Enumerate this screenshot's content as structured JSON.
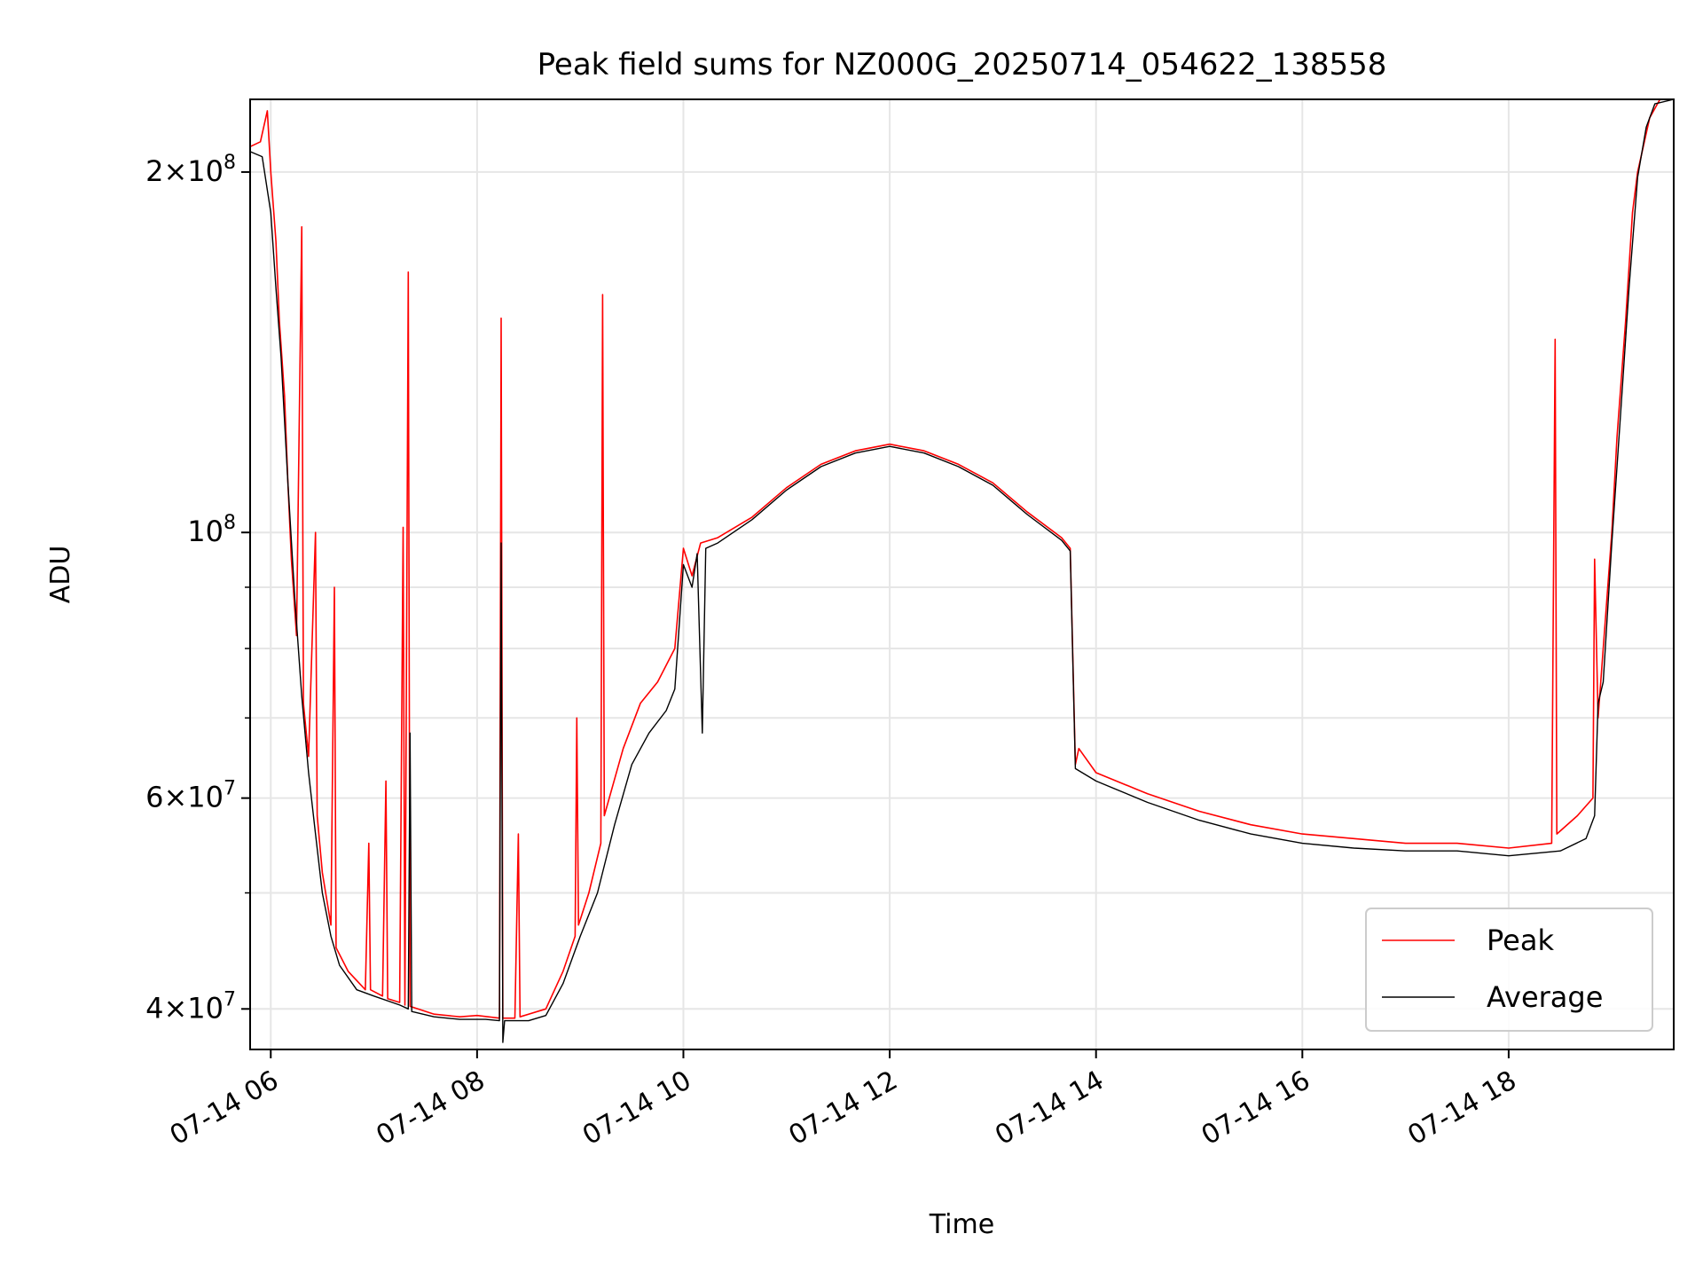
{
  "chart_data": {
    "type": "line",
    "title": "Peak field sums for NZ000G_20250714_054622_138558",
    "xlabel": "Time",
    "ylabel": "ADU",
    "x_type": "datetime",
    "y_scale": "log",
    "xlim": [
      "2025-07-14 05:48",
      "2025-07-14 19:36"
    ],
    "ylim": [
      37000000,
      230000000
    ],
    "x_ticks": [
      {
        "value": "2025-07-14 06:00",
        "label": "07-14 06"
      },
      {
        "value": "2025-07-14 08:00",
        "label": "07-14 08"
      },
      {
        "value": "2025-07-14 10:00",
        "label": "07-14 10"
      },
      {
        "value": "2025-07-14 12:00",
        "label": "07-14 12"
      },
      {
        "value": "2025-07-14 14:00",
        "label": "07-14 14"
      },
      {
        "value": "2025-07-14 16:00",
        "label": "07-14 16"
      },
      {
        "value": "2025-07-14 18:00",
        "label": "07-14 18"
      }
    ],
    "y_ticks": [
      {
        "value": 40000000,
        "mantissa": "4",
        "exponent": "7"
      },
      {
        "value": 60000000,
        "mantissa": "6",
        "exponent": "7"
      },
      {
        "value": 100000000,
        "mantissa": "",
        "exponent": "8"
      },
      {
        "value": 200000000,
        "mantissa": "2",
        "exponent": "8"
      }
    ],
    "y_minor_ticks": [
      50000000,
      70000000,
      80000000,
      90000000
    ],
    "grid": true,
    "legend_position": "lower-right",
    "series": [
      {
        "name": "Peak",
        "color": "#ff0000",
        "points": [
          [
            "2025-07-14 05:48",
            210000000
          ],
          [
            "2025-07-14 05:54",
            212000000
          ],
          [
            "2025-07-14 05:58",
            225000000
          ],
          [
            "2025-07-14 06:00",
            200000000
          ],
          [
            "2025-07-14 06:03",
            175000000
          ],
          [
            "2025-07-14 06:05",
            150000000
          ],
          [
            "2025-07-14 06:08",
            130000000
          ],
          [
            "2025-07-14 06:10",
            110000000
          ],
          [
            "2025-07-14 06:12",
            95000000
          ],
          [
            "2025-07-14 06:15",
            82000000
          ],
          [
            "2025-07-14 06:18",
            180000000
          ],
          [
            "2025-07-14 06:19",
            72000000
          ],
          [
            "2025-07-14 06:22",
            65000000
          ],
          [
            "2025-07-14 06:26",
            100000000
          ],
          [
            "2025-07-14 06:27",
            58000000
          ],
          [
            "2025-07-14 06:30",
            52000000
          ],
          [
            "2025-07-14 06:35",
            47000000
          ],
          [
            "2025-07-14 06:37",
            90000000
          ],
          [
            "2025-07-14 06:38",
            45000000
          ],
          [
            "2025-07-14 06:45",
            43000000
          ],
          [
            "2025-07-14 06:55",
            41500000
          ],
          [
            "2025-07-14 06:57",
            55000000
          ],
          [
            "2025-07-14 06:58",
            41500000
          ],
          [
            "2025-07-14 07:05",
            41000000
          ],
          [
            "2025-07-14 07:07",
            62000000
          ],
          [
            "2025-07-14 07:08",
            40800000
          ],
          [
            "2025-07-14 07:15",
            40500000
          ],
          [
            "2025-07-14 07:17",
            101000000
          ],
          [
            "2025-07-14 07:18",
            40300000
          ],
          [
            "2025-07-14 07:20",
            165000000
          ],
          [
            "2025-07-14 07:21",
            40200000
          ],
          [
            "2025-07-14 07:35",
            39600000
          ],
          [
            "2025-07-14 07:50",
            39400000
          ],
          [
            "2025-07-14 08:00",
            39500000
          ],
          [
            "2025-07-14 08:13",
            39300000
          ],
          [
            "2025-07-14 08:14",
            151000000
          ],
          [
            "2025-07-14 08:15",
            39300000
          ],
          [
            "2025-07-14 08:22",
            39300000
          ],
          [
            "2025-07-14 08:24",
            56000000
          ],
          [
            "2025-07-14 08:25",
            39400000
          ],
          [
            "2025-07-14 08:40",
            40000000
          ],
          [
            "2025-07-14 08:50",
            43000000
          ],
          [
            "2025-07-14 08:57",
            46000000
          ],
          [
            "2025-07-14 08:58",
            70000000
          ],
          [
            "2025-07-14 08:59",
            47000000
          ],
          [
            "2025-07-14 09:05",
            50000000
          ],
          [
            "2025-07-14 09:12",
            55000000
          ],
          [
            "2025-07-14 09:13",
            158000000
          ],
          [
            "2025-07-14 09:14",
            58000000
          ],
          [
            "2025-07-14 09:25",
            66000000
          ],
          [
            "2025-07-14 09:35",
            72000000
          ],
          [
            "2025-07-14 09:45",
            75000000
          ],
          [
            "2025-07-14 09:55",
            80000000
          ],
          [
            "2025-07-14 10:00",
            97000000
          ],
          [
            "2025-07-14 10:05",
            92000000
          ],
          [
            "2025-07-14 10:10",
            98000000
          ],
          [
            "2025-07-14 10:20",
            99000000
          ],
          [
            "2025-07-14 10:40",
            103000000
          ],
          [
            "2025-07-14 11:00",
            109000000
          ],
          [
            "2025-07-14 11:20",
            114000000
          ],
          [
            "2025-07-14 11:40",
            117000000
          ],
          [
            "2025-07-14 12:00",
            118500000
          ],
          [
            "2025-07-14 12:20",
            117000000
          ],
          [
            "2025-07-14 12:40",
            114000000
          ],
          [
            "2025-07-14 13:00",
            110000000
          ],
          [
            "2025-07-14 13:20",
            104000000
          ],
          [
            "2025-07-14 13:40",
            99000000
          ],
          [
            "2025-07-14 13:45",
            97000000
          ],
          [
            "2025-07-14 13:48",
            64000000
          ],
          [
            "2025-07-14 13:50",
            66000000
          ],
          [
            "2025-07-14 14:00",
            63000000
          ],
          [
            "2025-07-14 14:30",
            60500000
          ],
          [
            "2025-07-14 15:00",
            58500000
          ],
          [
            "2025-07-14 15:30",
            57000000
          ],
          [
            "2025-07-14 16:00",
            56000000
          ],
          [
            "2025-07-14 16:30",
            55500000
          ],
          [
            "2025-07-14 17:00",
            55000000
          ],
          [
            "2025-07-14 17:30",
            55000000
          ],
          [
            "2025-07-14 18:00",
            54500000
          ],
          [
            "2025-07-14 18:25",
            55000000
          ],
          [
            "2025-07-14 18:27",
            145000000
          ],
          [
            "2025-07-14 18:28",
            56000000
          ],
          [
            "2025-07-14 18:40",
            58000000
          ],
          [
            "2025-07-14 18:49",
            60000000
          ],
          [
            "2025-07-14 18:50",
            95000000
          ],
          [
            "2025-07-14 18:52",
            70000000
          ],
          [
            "2025-07-14 19:00",
            100000000
          ],
          [
            "2025-07-14 19:03",
            120000000
          ],
          [
            "2025-07-14 19:08",
            150000000
          ],
          [
            "2025-07-14 19:12",
            185000000
          ],
          [
            "2025-07-14 19:15",
            200000000
          ],
          [
            "2025-07-14 19:22",
            222000000
          ],
          [
            "2025-07-14 19:28",
            230000000
          ],
          [
            "2025-07-14 19:36",
            230000000
          ]
        ]
      },
      {
        "name": "Average",
        "color": "#000000",
        "points": [
          [
            "2025-07-14 05:48",
            208000000
          ],
          [
            "2025-07-14 05:55",
            206000000
          ],
          [
            "2025-07-14 06:00",
            185000000
          ],
          [
            "2025-07-14 06:03",
            160000000
          ],
          [
            "2025-07-14 06:06",
            140000000
          ],
          [
            "2025-07-14 06:10",
            110000000
          ],
          [
            "2025-07-14 06:14",
            88000000
          ],
          [
            "2025-07-14 06:18",
            73000000
          ],
          [
            "2025-07-14 06:22",
            63000000
          ],
          [
            "2025-07-14 06:26",
            56000000
          ],
          [
            "2025-07-14 06:30",
            50000000
          ],
          [
            "2025-07-14 06:35",
            46000000
          ],
          [
            "2025-07-14 06:40",
            43500000
          ],
          [
            "2025-07-14 06:50",
            41500000
          ],
          [
            "2025-07-14 07:00",
            41000000
          ],
          [
            "2025-07-14 07:15",
            40300000
          ],
          [
            "2025-07-14 07:20",
            40000000
          ],
          [
            "2025-07-14 07:21",
            68000000
          ],
          [
            "2025-07-14 07:22",
            39800000
          ],
          [
            "2025-07-14 07:35",
            39400000
          ],
          [
            "2025-07-14 07:50",
            39200000
          ],
          [
            "2025-07-14 08:05",
            39200000
          ],
          [
            "2025-07-14 08:13",
            39100000
          ],
          [
            "2025-07-14 08:14",
            98000000
          ],
          [
            "2025-07-14 08:15",
            37500000
          ],
          [
            "2025-07-14 08:16",
            39100000
          ],
          [
            "2025-07-14 08:30",
            39100000
          ],
          [
            "2025-07-14 08:40",
            39500000
          ],
          [
            "2025-07-14 08:50",
            42000000
          ],
          [
            "2025-07-14 09:00",
            46000000
          ],
          [
            "2025-07-14 09:10",
            50000000
          ],
          [
            "2025-07-14 09:20",
            57000000
          ],
          [
            "2025-07-14 09:30",
            64000000
          ],
          [
            "2025-07-14 09:40",
            68000000
          ],
          [
            "2025-07-14 09:50",
            71000000
          ],
          [
            "2025-07-14 09:55",
            74000000
          ],
          [
            "2025-07-14 10:00",
            94000000
          ],
          [
            "2025-07-14 10:05",
            90000000
          ],
          [
            "2025-07-14 10:08",
            96000000
          ],
          [
            "2025-07-14 10:11",
            68000000
          ],
          [
            "2025-07-14 10:13",
            97000000
          ],
          [
            "2025-07-14 10:20",
            98000000
          ],
          [
            "2025-07-14 10:40",
            102500000
          ],
          [
            "2025-07-14 11:00",
            108500000
          ],
          [
            "2025-07-14 11:20",
            113500000
          ],
          [
            "2025-07-14 11:40",
            116500000
          ],
          [
            "2025-07-14 12:00",
            118000000
          ],
          [
            "2025-07-14 12:20",
            116500000
          ],
          [
            "2025-07-14 12:40",
            113500000
          ],
          [
            "2025-07-14 13:00",
            109500000
          ],
          [
            "2025-07-14 13:20",
            103500000
          ],
          [
            "2025-07-14 13:40",
            98500000
          ],
          [
            "2025-07-14 13:45",
            96500000
          ],
          [
            "2025-07-14 13:48",
            63500000
          ],
          [
            "2025-07-14 14:00",
            62000000
          ],
          [
            "2025-07-14 14:30",
            59500000
          ],
          [
            "2025-07-14 15:00",
            57500000
          ],
          [
            "2025-07-14 15:30",
            56000000
          ],
          [
            "2025-07-14 16:00",
            55000000
          ],
          [
            "2025-07-14 16:30",
            54500000
          ],
          [
            "2025-07-14 17:00",
            54200000
          ],
          [
            "2025-07-14 17:30",
            54200000
          ],
          [
            "2025-07-14 18:00",
            53700000
          ],
          [
            "2025-07-14 18:30",
            54200000
          ],
          [
            "2025-07-14 18:45",
            55500000
          ],
          [
            "2025-07-14 18:50",
            58000000
          ],
          [
            "2025-07-14 18:52",
            72000000
          ],
          [
            "2025-07-14 18:55",
            75000000
          ],
          [
            "2025-07-14 19:00",
            98000000
          ],
          [
            "2025-07-14 19:05",
            125000000
          ],
          [
            "2025-07-14 19:10",
            160000000
          ],
          [
            "2025-07-14 19:15",
            198000000
          ],
          [
            "2025-07-14 19:20",
            218000000
          ],
          [
            "2025-07-14 19:25",
            228000000
          ],
          [
            "2025-07-14 19:36",
            230000000
          ]
        ]
      }
    ]
  }
}
